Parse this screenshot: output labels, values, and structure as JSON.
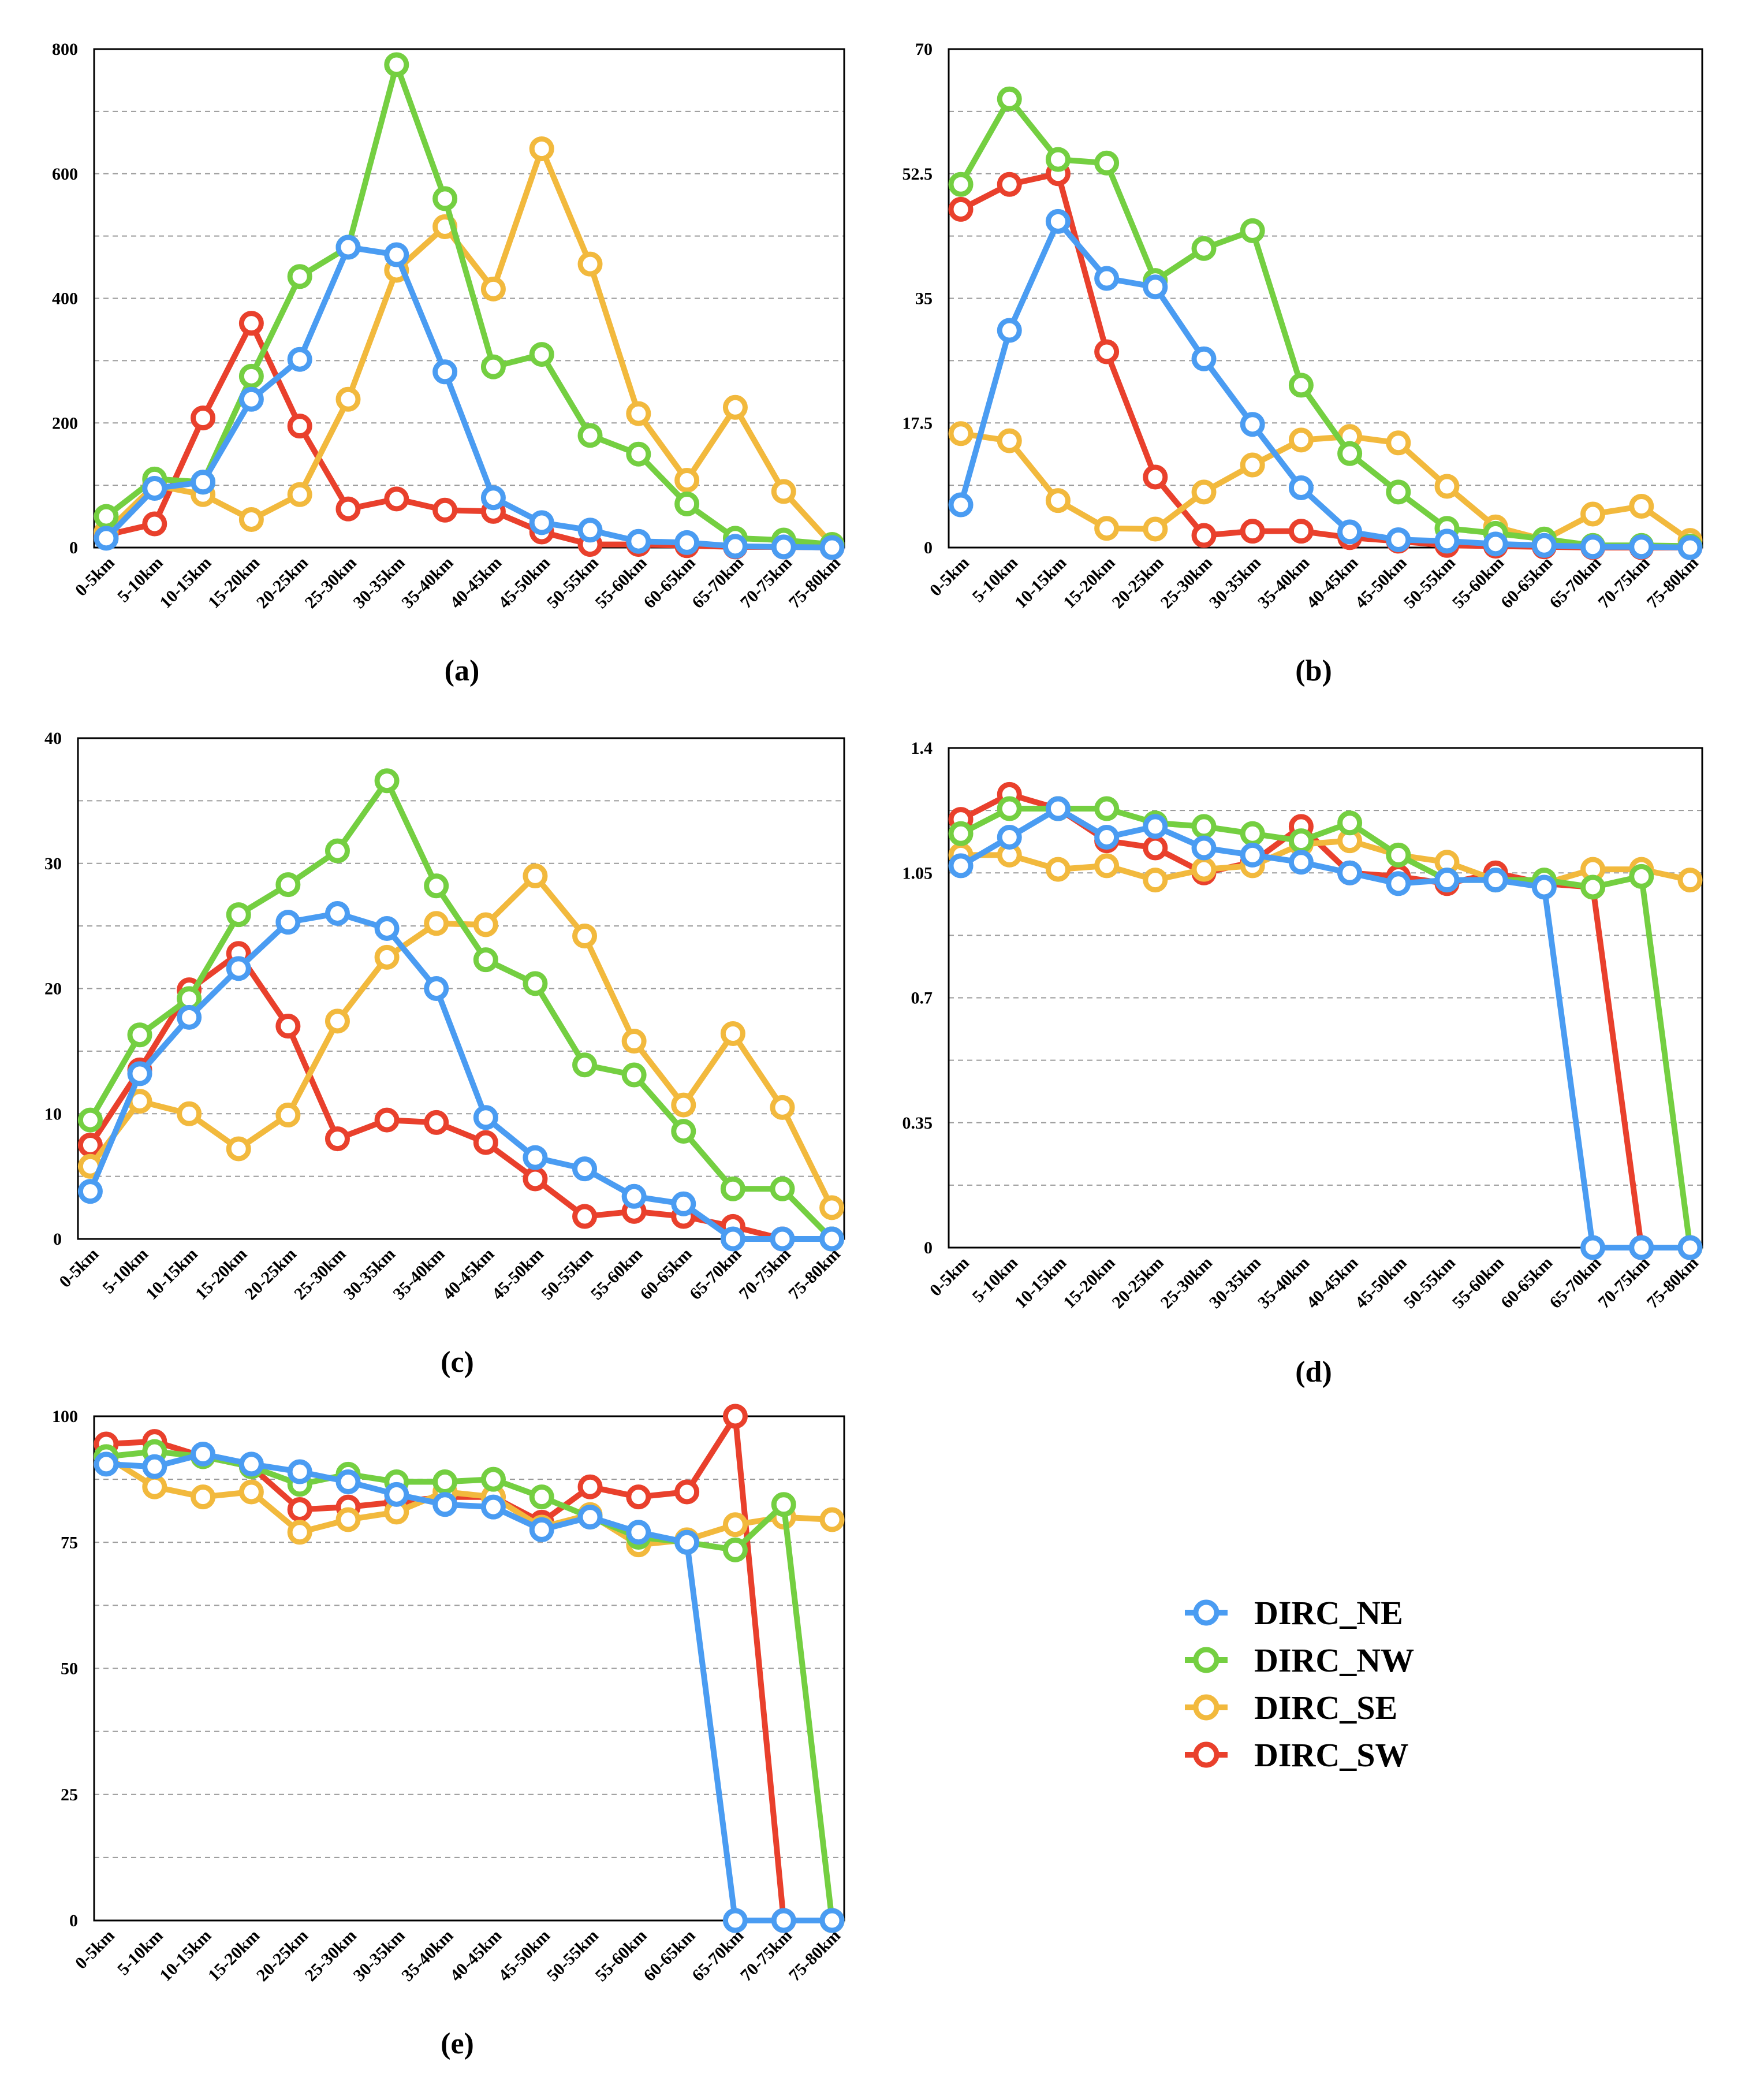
{
  "colors": {
    "NE": "#4a9cf2",
    "NW": "#74cf41",
    "SE": "#f2b93d",
    "SW": "#e9402c"
  },
  "legend": [
    {
      "name": "DIRC_NE",
      "color": "#4a9cf2"
    },
    {
      "name": "DIRC_NW",
      "color": "#74cf41"
    },
    {
      "name": "DIRC_SE",
      "color": "#f2b93d"
    },
    {
      "name": "DIRC_SW",
      "color": "#e9402c"
    }
  ],
  "chart_data": [
    {
      "id": "a",
      "title": "(a)",
      "type": "line",
      "categories": [
        "0-5km",
        "5-10km",
        "10-15km",
        "15-20km",
        "20-25km",
        "25-30km",
        "30-35km",
        "35-40km",
        "40-45km",
        "45-50km",
        "50-55km",
        "55-60km",
        "60-65km",
        "65-70km",
        "70-75km",
        "75-80km"
      ],
      "ylim": [
        0,
        800
      ],
      "yticks": [
        0,
        200,
        400,
        600,
        800
      ],
      "ytick_labels": [
        "0",
        "200",
        "400",
        "600",
        "800"
      ],
      "series": [
        {
          "name": "DIRC_NE",
          "values": [
            15,
            95,
            105,
            238,
            302,
            482,
            470,
            282,
            80,
            40,
            28,
            10,
            8,
            2,
            1,
            0
          ]
        },
        {
          "name": "DIRC_NW",
          "values": [
            50,
            110,
            105,
            275,
            435,
            482,
            775,
            560,
            290,
            310,
            180,
            150,
            70,
            15,
            12,
            5
          ]
        },
        {
          "name": "DIRC_SE",
          "values": [
            25,
            100,
            85,
            45,
            85,
            238,
            445,
            515,
            415,
            640,
            455,
            215,
            108,
            225,
            90,
            5
          ]
        },
        {
          "name": "DIRC_SW",
          "values": [
            20,
            38,
            208,
            360,
            195,
            62,
            78,
            60,
            58,
            25,
            5,
            5,
            3,
            1,
            1,
            0
          ]
        }
      ]
    },
    {
      "id": "b",
      "title": "(b)",
      "type": "line",
      "categories": [
        "0-5km",
        "5-10km",
        "10-15km",
        "15-20km",
        "20-25km",
        "25-30km",
        "30-35km",
        "35-40km",
        "40-45km",
        "45-50km",
        "50-55km",
        "55-60km",
        "60-65km",
        "65-70km",
        "70-75km",
        "75-80km"
      ],
      "ylim": [
        0,
        70
      ],
      "yticks": [
        0,
        17.5,
        35,
        52.5,
        70
      ],
      "ytick_labels": [
        "0",
        "17.5",
        "35",
        "52.5",
        "70"
      ],
      "series": [
        {
          "name": "DIRC_NE",
          "values": [
            6,
            30.5,
            45.8,
            37.8,
            36.6,
            26.5,
            17.3,
            8.4,
            2.2,
            1.1,
            0.9,
            0.5,
            0.3,
            0.1,
            0.1,
            0
          ]
        },
        {
          "name": "DIRC_NW",
          "values": [
            51,
            63,
            54.5,
            54,
            37.5,
            42,
            44.5,
            22.8,
            13.2,
            7.8,
            2.7,
            2,
            1.2,
            0.3,
            0.3,
            0.2
          ]
        },
        {
          "name": "DIRC_SE",
          "values": [
            16,
            15,
            6.6,
            2.7,
            2.6,
            7.8,
            11.6,
            15.1,
            15.6,
            14.7,
            8.6,
            2.9,
            1.1,
            4.7,
            5.8,
            1
          ]
        },
        {
          "name": "DIRC_SW",
          "values": [
            47.5,
            51,
            52.5,
            27.5,
            9.9,
            1.7,
            2.3,
            2.3,
            1.4,
            0.9,
            0.3,
            0.2,
            0.1,
            0,
            0,
            0
          ]
        }
      ]
    },
    {
      "id": "c",
      "title": "(c)",
      "type": "line",
      "categories": [
        "0-5km",
        "5-10km",
        "10-15km",
        "15-20km",
        "20-25km",
        "25-30km",
        "30-35km",
        "35-40km",
        "40-45km",
        "45-50km",
        "50-55km",
        "55-60km",
        "60-65km",
        "65-70km",
        "70-75km",
        "75-80km"
      ],
      "ylim": [
        0,
        40
      ],
      "yticks": [
        0,
        10,
        20,
        30,
        40
      ],
      "ytick_labels": [
        "0",
        "10",
        "20",
        "30",
        "40"
      ],
      "series": [
        {
          "name": "DIRC_NE",
          "values": [
            3.8,
            13.2,
            17.7,
            21.6,
            25.3,
            26,
            24.8,
            20,
            9.7,
            6.5,
            5.6,
            3.4,
            2.8,
            0,
            0,
            0
          ]
        },
        {
          "name": "DIRC_NW",
          "values": [
            9.5,
            16.3,
            19.2,
            25.9,
            28.3,
            31,
            36.6,
            28.2,
            22.3,
            20.4,
            13.9,
            13.1,
            8.6,
            4,
            4,
            0
          ]
        },
        {
          "name": "DIRC_SE",
          "values": [
            5.8,
            11,
            10,
            7.2,
            9.9,
            17.4,
            22.5,
            25.2,
            25.1,
            29,
            24.2,
            15.8,
            10.7,
            16.4,
            10.5,
            2.5
          ]
        },
        {
          "name": "DIRC_SW",
          "values": [
            7.5,
            13.5,
            19.9,
            22.8,
            17,
            8,
            9.5,
            9.3,
            7.7,
            4.8,
            1.8,
            2.2,
            1.8,
            1,
            0,
            0
          ]
        }
      ]
    },
    {
      "id": "d",
      "title": "(d)",
      "type": "line",
      "categories": [
        "0-5km",
        "5-10km",
        "10-15km",
        "15-20km",
        "20-25km",
        "25-30km",
        "30-35km",
        "35-40km",
        "40-45km",
        "45-50km",
        "50-55km",
        "55-60km",
        "60-65km",
        "65-70km",
        "70-75km",
        "75-80km"
      ],
      "ylim": [
        0,
        1.4
      ],
      "yticks": [
        0,
        0.35,
        0.7,
        1.05,
        1.4
      ],
      "ytick_labels": [
        "0",
        "0.35",
        "0.7",
        "1.05",
        "1.4"
      ],
      "series": [
        {
          "name": "DIRC_NE",
          "values": [
            1.07,
            1.15,
            1.23,
            1.15,
            1.18,
            1.12,
            1.1,
            1.08,
            1.05,
            1.02,
            1.03,
            1.03,
            1.01,
            0,
            0,
            0
          ]
        },
        {
          "name": "DIRC_NW",
          "values": [
            1.16,
            1.23,
            1.23,
            1.23,
            1.19,
            1.18,
            1.16,
            1.14,
            1.19,
            1.1,
            1.03,
            1.03,
            1.03,
            1.01,
            1.04,
            0
          ]
        },
        {
          "name": "DIRC_SE",
          "values": [
            1.1,
            1.1,
            1.06,
            1.07,
            1.03,
            1.06,
            1.07,
            1.13,
            1.14,
            1.1,
            1.08,
            1.03,
            1.02,
            1.06,
            1.06,
            1.03
          ]
        },
        {
          "name": "DIRC_SW",
          "values": [
            1.2,
            1.27,
            1.23,
            1.14,
            1.12,
            1.05,
            1.08,
            1.18,
            1.05,
            1.04,
            1.02,
            1.05,
            1.02,
            1.01,
            0,
            0
          ]
        }
      ]
    },
    {
      "id": "e",
      "title": "(e)",
      "type": "line",
      "categories": [
        "0-5km",
        "5-10km",
        "10-15km",
        "15-20km",
        "20-25km",
        "25-30km",
        "30-35km",
        "35-40km",
        "40-45km",
        "45-50km",
        "50-55km",
        "55-60km",
        "60-65km",
        "65-70km",
        "70-75km",
        "75-80km"
      ],
      "ylim": [
        0,
        100
      ],
      "yticks": [
        0,
        25,
        50,
        75,
        100
      ],
      "ytick_labels": [
        "0",
        "25",
        "50",
        "75",
        "100"
      ],
      "series": [
        {
          "name": "DIRC_NE",
          "values": [
            90.5,
            90,
            92.5,
            90.5,
            89,
            87,
            84.5,
            82.5,
            82,
            77.5,
            80,
            77,
            75,
            0,
            0,
            0
          ]
        },
        {
          "name": "DIRC_NW",
          "values": [
            92,
            93,
            92,
            90,
            86.5,
            88.5,
            87,
            87,
            87.5,
            84,
            80,
            76,
            75,
            73.5,
            82.5,
            0
          ]
        },
        {
          "name": "DIRC_SE",
          "values": [
            92,
            86,
            84,
            85,
            77,
            79.5,
            81,
            85,
            84,
            78,
            80.5,
            74.5,
            75.5,
            78.5,
            80,
            79.5
          ]
        },
        {
          "name": "DIRC_SW",
          "values": [
            94.5,
            95,
            92,
            90,
            81.5,
            82,
            83,
            84,
            84,
            79,
            86,
            84,
            85,
            100,
            0,
            0
          ]
        }
      ]
    }
  ]
}
